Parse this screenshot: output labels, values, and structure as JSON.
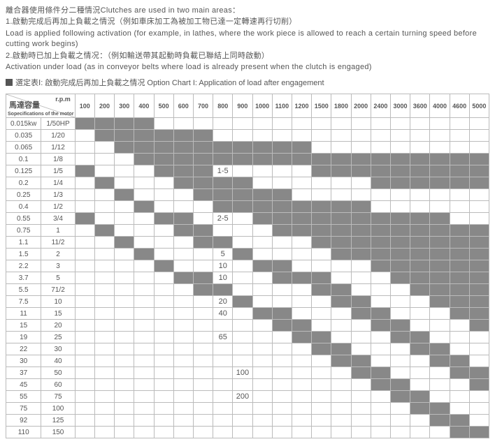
{
  "intro": {
    "line1": "離合器使用條件分二種情況Clutches  are used in two main areas：",
    "line2": "1.啟動完成后再加上負載之情況（例如車床加工為被加工物已達一定轉速再行切削）",
    "line3": "  Load is applied following activation (for example, in lathes, where the work piece is allowed to reach a certain turning speed before cutting work begins)",
    "line4": "2.啟動時已加上負載之情况：（例如輸送帶其起動時負載已聯結上同時啟動）",
    "line5": "  Activation under load (as in conveyor belts where load is already present when the clutch is engaged)"
  },
  "title": "選定表Ⅰ:  啟動完成后再加上負載之情况 Option Chart I: Application of load after engagement",
  "header": {
    "rpm_label": "r.p.m",
    "motor_label": "馬達容量",
    "motor_sub": "Sopecifications of the motor",
    "rpm_cols": [
      "100",
      "200",
      "300",
      "400",
      "500",
      "600",
      "700",
      "800",
      "900",
      "1000",
      "1100",
      "1200",
      "1500",
      "1800",
      "2000",
      "2400",
      "3000",
      "3600",
      "4000",
      "4600",
      "5000"
    ]
  },
  "rows": [
    {
      "kw": "0.015kw",
      "hp": "1/50HP",
      "fill": [
        1,
        1,
        1,
        1,
        0,
        0,
        0,
        0,
        0,
        0,
        0,
        0,
        0,
        0,
        0,
        0,
        0,
        0,
        0,
        0,
        0
      ],
      "labelCol": -1,
      "label": ""
    },
    {
      "kw": "0.035",
      "hp": "1/20",
      "fill": [
        0,
        1,
        1,
        1,
        1,
        1,
        1,
        0,
        0,
        0,
        0,
        0,
        0,
        0,
        0,
        0,
        0,
        0,
        0,
        0,
        0
      ],
      "labelCol": -1,
      "label": ""
    },
    {
      "kw": "0.065",
      "hp": "1/12",
      "fill": [
        0,
        0,
        1,
        1,
        1,
        1,
        1,
        1,
        1,
        1,
        1,
        1,
        0,
        0,
        0,
        0,
        0,
        0,
        0,
        0,
        0
      ],
      "labelCol": -1,
      "label": ""
    },
    {
      "kw": "0.1",
      "hp": "1/8",
      "fill": [
        0,
        0,
        0,
        1,
        1,
        1,
        1,
        1,
        1,
        1,
        1,
        1,
        1,
        1,
        1,
        1,
        1,
        1,
        1,
        1,
        1
      ],
      "labelCol": -1,
      "label": ""
    },
    {
      "kw": "0.125",
      "hp": "1/5",
      "fill": [
        1,
        0,
        0,
        0,
        1,
        1,
        1,
        0,
        0,
        0,
        0,
        0,
        1,
        1,
        1,
        1,
        1,
        1,
        1,
        1,
        1
      ],
      "labelCol": 7,
      "label": "1-5"
    },
    {
      "kw": "0.2",
      "hp": "1/4",
      "fill": [
        0,
        1,
        0,
        0,
        0,
        1,
        1,
        1,
        1,
        0,
        0,
        0,
        0,
        0,
        0,
        1,
        1,
        1,
        1,
        1,
        1
      ],
      "labelCol": -1,
      "label": ""
    },
    {
      "kw": "0.25",
      "hp": "1/3",
      "fill": [
        0,
        0,
        1,
        0,
        0,
        0,
        1,
        1,
        1,
        1,
        1,
        0,
        0,
        0,
        0,
        0,
        0,
        0,
        0,
        0,
        0
      ],
      "labelCol": -1,
      "label": ""
    },
    {
      "kw": "0.4",
      "hp": "1/2",
      "fill": [
        0,
        0,
        0,
        1,
        0,
        0,
        0,
        1,
        1,
        1,
        1,
        1,
        1,
        1,
        1,
        0,
        0,
        0,
        0,
        0,
        0
      ],
      "labelCol": -1,
      "label": ""
    },
    {
      "kw": "0.55",
      "hp": "3/4",
      "fill": [
        1,
        0,
        0,
        0,
        1,
        1,
        0,
        0,
        0,
        1,
        1,
        1,
        1,
        1,
        1,
        1,
        1,
        1,
        1,
        0,
        0
      ],
      "labelCol": 7,
      "label": "2-5"
    },
    {
      "kw": "0.75",
      "hp": "1",
      "fill": [
        0,
        1,
        0,
        0,
        0,
        1,
        1,
        0,
        0,
        0,
        1,
        1,
        1,
        1,
        1,
        1,
        1,
        1,
        1,
        1,
        1
      ],
      "labelCol": -1,
      "label": ""
    },
    {
      "kw": "1.1",
      "hp": "11/2",
      "fill": [
        0,
        0,
        1,
        0,
        0,
        0,
        1,
        1,
        0,
        0,
        0,
        0,
        1,
        1,
        1,
        1,
        1,
        1,
        1,
        1,
        1
      ],
      "labelCol": -1,
      "label": ""
    },
    {
      "kw": "1.5",
      "hp": "2",
      "fill": [
        0,
        0,
        0,
        1,
        0,
        0,
        0,
        0,
        1,
        0,
        0,
        0,
        0,
        1,
        1,
        1,
        1,
        1,
        1,
        1,
        1
      ],
      "labelCol": 7,
      "label": "5"
    },
    {
      "kw": "2.2",
      "hp": "3",
      "fill": [
        0,
        0,
        0,
        0,
        1,
        0,
        0,
        0,
        0,
        1,
        1,
        0,
        0,
        0,
        0,
        1,
        1,
        1,
        1,
        1,
        1
      ],
      "labelCol": 7,
      "label": "10"
    },
    {
      "kw": "3.7",
      "hp": "5",
      "fill": [
        0,
        0,
        0,
        0,
        0,
        1,
        1,
        0,
        0,
        0,
        1,
        1,
        1,
        0,
        0,
        0,
        1,
        1,
        1,
        1,
        1
      ],
      "labelCol": 7,
      "label": "10"
    },
    {
      "kw": "5.5",
      "hp": "71/2",
      "fill": [
        0,
        0,
        0,
        0,
        0,
        0,
        1,
        1,
        0,
        0,
        0,
        0,
        1,
        1,
        0,
        0,
        0,
        1,
        1,
        1,
        1
      ],
      "labelCol": -1,
      "label": ""
    },
    {
      "kw": "7.5",
      "hp": "10",
      "fill": [
        0,
        0,
        0,
        0,
        0,
        0,
        0,
        0,
        1,
        0,
        0,
        0,
        0,
        1,
        1,
        0,
        0,
        0,
        1,
        1,
        1
      ],
      "labelCol": 7,
      "label": "20"
    },
    {
      "kw": "11",
      "hp": "15",
      "fill": [
        0,
        0,
        0,
        0,
        0,
        0,
        0,
        0,
        0,
        1,
        1,
        0,
        0,
        0,
        1,
        1,
        0,
        0,
        0,
        1,
        1
      ],
      "labelCol": 7,
      "label": "40"
    },
    {
      "kw": "15",
      "hp": "20",
      "fill": [
        0,
        0,
        0,
        0,
        0,
        0,
        0,
        0,
        0,
        0,
        1,
        1,
        0,
        0,
        0,
        1,
        1,
        0,
        0,
        0,
        1
      ],
      "labelCol": -1,
      "label": ""
    },
    {
      "kw": "19",
      "hp": "25",
      "fill": [
        0,
        0,
        0,
        0,
        0,
        0,
        0,
        0,
        0,
        0,
        0,
        1,
        1,
        0,
        0,
        0,
        1,
        1,
        0,
        0,
        0
      ],
      "labelCol": 7,
      "label": "65"
    },
    {
      "kw": "22",
      "hp": "30",
      "fill": [
        0,
        0,
        0,
        0,
        0,
        0,
        0,
        0,
        0,
        0,
        0,
        0,
        1,
        1,
        0,
        0,
        0,
        1,
        1,
        0,
        0
      ],
      "labelCol": -1,
      "label": ""
    },
    {
      "kw": "30",
      "hp": "40",
      "fill": [
        0,
        0,
        0,
        0,
        0,
        0,
        0,
        0,
        0,
        0,
        0,
        0,
        0,
        1,
        1,
        0,
        0,
        0,
        1,
        1,
        0
      ],
      "labelCol": -1,
      "label": ""
    },
    {
      "kw": "37",
      "hp": "50",
      "fill": [
        0,
        0,
        0,
        0,
        0,
        0,
        0,
        0,
        0,
        0,
        0,
        0,
        0,
        0,
        1,
        1,
        0,
        0,
        0,
        1,
        1
      ],
      "labelCol": 8,
      "label": "100"
    },
    {
      "kw": "45",
      "hp": "60",
      "fill": [
        0,
        0,
        0,
        0,
        0,
        0,
        0,
        0,
        0,
        0,
        0,
        0,
        0,
        0,
        0,
        1,
        1,
        0,
        0,
        0,
        1
      ],
      "labelCol": -1,
      "label": ""
    },
    {
      "kw": "55",
      "hp": "75",
      "fill": [
        0,
        0,
        0,
        0,
        0,
        0,
        0,
        0,
        0,
        0,
        0,
        0,
        0,
        0,
        0,
        0,
        1,
        1,
        0,
        0,
        0
      ],
      "labelCol": 8,
      "label": "200"
    },
    {
      "kw": "75",
      "hp": "100",
      "fill": [
        0,
        0,
        0,
        0,
        0,
        0,
        0,
        0,
        0,
        0,
        0,
        0,
        0,
        0,
        0,
        0,
        0,
        1,
        1,
        0,
        0
      ],
      "labelCol": -1,
      "label": ""
    },
    {
      "kw": "92",
      "hp": "125",
      "fill": [
        0,
        0,
        0,
        0,
        0,
        0,
        0,
        0,
        0,
        0,
        0,
        0,
        0,
        0,
        0,
        0,
        0,
        0,
        1,
        1,
        0
      ],
      "labelCol": -1,
      "label": ""
    },
    {
      "kw": "110",
      "hp": "150",
      "fill": [
        0,
        0,
        0,
        0,
        0,
        0,
        0,
        0,
        0,
        0,
        0,
        0,
        0,
        0,
        0,
        0,
        0,
        0,
        0,
        1,
        1
      ],
      "labelCol": -1,
      "label": ""
    }
  ],
  "colors": {
    "fill": "#888888",
    "border": "#bbbbbb",
    "text": "#555555"
  }
}
